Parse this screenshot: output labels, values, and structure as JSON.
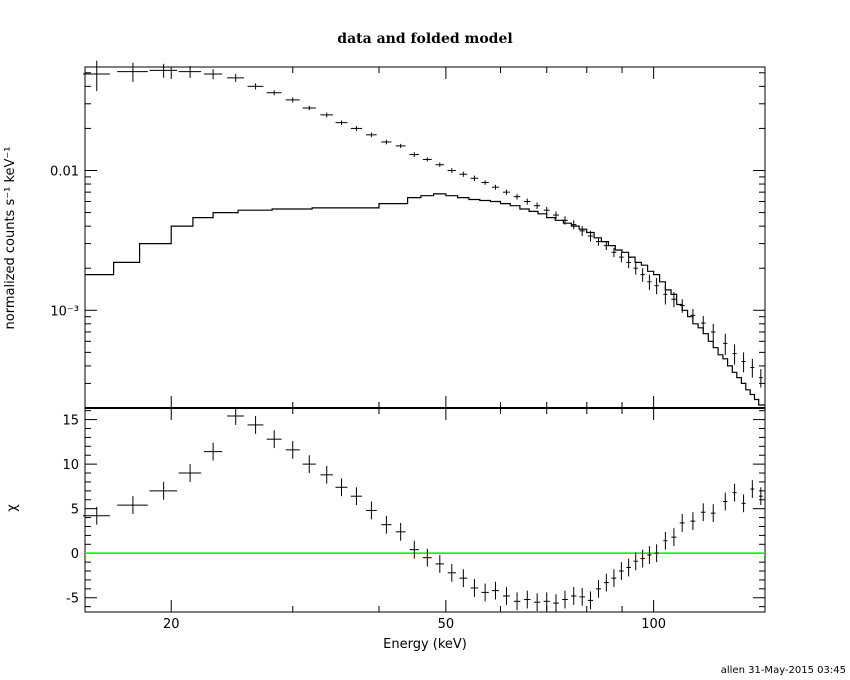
{
  "title": "data and folded model",
  "footer": "allen 31-May-2015 03:45",
  "colors": {
    "ink": "#000000",
    "zero_line": "#00ff00"
  },
  "chart_data": [
    {
      "type": "scatter",
      "panel": "top",
      "title": "data and folded model",
      "ylabel": "normalized counts s⁻¹ keV⁻¹",
      "xscale": "log",
      "yscale": "log",
      "xlim": [
        15,
        145
      ],
      "ylim": [
        0.0002,
        0.055
      ],
      "yticks": [
        {
          "v": 0.01,
          "label": "0.01"
        },
        {
          "v": 0.001,
          "label": "10⁻³"
        }
      ],
      "series": [
        {
          "kind": "data",
          "points": [
            [
              15.6,
              0.049,
              0.7,
              0.012
            ],
            [
              17.6,
              0.051,
              0.9,
              0.008
            ],
            [
              19.5,
              0.052,
              0.9,
              0.006
            ],
            [
              21.3,
              0.051,
              0.8,
              0.005
            ],
            [
              23.0,
              0.049,
              0.7,
              0.004
            ],
            [
              24.8,
              0.046,
              0.7,
              0.003
            ],
            [
              26.5,
              0.04,
              0.7,
              0.002
            ],
            [
              28.2,
              0.036,
              0.7,
              0.0015
            ],
            [
              30.0,
              0.032,
              0.7,
              0.0013
            ],
            [
              31.7,
              0.028,
              0.7,
              0.001
            ],
            [
              33.6,
              0.025,
              0.7,
              0.001
            ],
            [
              35.3,
              0.022,
              0.7,
              0.0008
            ],
            [
              37.1,
              0.02,
              0.7,
              0.0008
            ],
            [
              39.0,
              0.018,
              0.7,
              0.0007
            ],
            [
              41.0,
              0.016,
              0.7,
              0.0006
            ],
            [
              43.0,
              0.015,
              0.7,
              0.0005
            ],
            [
              45.0,
              0.013,
              0.7,
              0.0005
            ],
            [
              47.0,
              0.012,
              0.7,
              0.0004
            ],
            [
              49.0,
              0.011,
              0.7,
              0.0004
            ],
            [
              51.0,
              0.01,
              0.7,
              0.0004
            ],
            [
              53.0,
              0.0094,
              0.7,
              0.0004
            ],
            [
              55.0,
              0.0088,
              0.7,
              0.0004
            ],
            [
              57.0,
              0.0082,
              0.7,
              0.0003
            ],
            [
              59.0,
              0.0076,
              0.7,
              0.0003
            ],
            [
              61.2,
              0.007,
              0.7,
              0.0003
            ],
            [
              63.4,
              0.0065,
              0.7,
              0.0003
            ],
            [
              65.6,
              0.006,
              0.7,
              0.0003
            ],
            [
              67.8,
              0.0056,
              0.7,
              0.0003
            ],
            [
              70.0,
              0.0052,
              0.7,
              0.0003
            ],
            [
              72.2,
              0.0048,
              0.7,
              0.0003
            ],
            [
              74.4,
              0.0044,
              0.7,
              0.0003
            ],
            [
              76.6,
              0.0041,
              0.7,
              0.0003
            ],
            [
              78.8,
              0.0037,
              0.7,
              0.0003
            ],
            [
              81.0,
              0.0034,
              0.7,
              0.0003
            ],
            [
              83.2,
              0.0031,
              0.7,
              0.0002
            ],
            [
              85.4,
              0.0029,
              0.7,
              0.0002
            ],
            [
              87.6,
              0.0026,
              0.7,
              0.0002
            ],
            [
              89.8,
              0.0024,
              0.7,
              0.0002
            ],
            [
              92.0,
              0.0022,
              0.7,
              0.0002
            ],
            [
              94.2,
              0.002,
              0.7,
              0.0002
            ],
            [
              96.4,
              0.0018,
              0.7,
              0.0002
            ],
            [
              98.6,
              0.0016,
              0.7,
              0.0002
            ],
            [
              101,
              0.0015,
              0.7,
              0.0002
            ],
            [
              104,
              0.0013,
              0.7,
              0.0002
            ],
            [
              107,
              0.0012,
              0.9,
              0.00015
            ],
            [
              110,
              0.00108,
              0.9,
              0.00012
            ],
            [
              114,
              0.00092,
              0.9,
              0.0001
            ],
            [
              118,
              0.00081,
              0.9,
              0.0001
            ],
            [
              122,
              0.0007,
              0.9,
              0.0001
            ],
            [
              127,
              0.00058,
              0.9,
              0.0001
            ],
            [
              131,
              0.00049,
              0.9,
              8e-05
            ],
            [
              135,
              0.00043,
              0.9,
              7e-05
            ],
            [
              139,
              0.00039,
              0.9,
              6e-05
            ],
            [
              143,
              0.00033,
              0.9,
              5e-05
            ]
          ]
        },
        {
          "kind": "model",
          "steps": [
            [
              15,
              0.0018
            ],
            [
              16.5,
              0.0022
            ],
            [
              18,
              0.003
            ],
            [
              20,
              0.004
            ],
            [
              21.5,
              0.0046
            ],
            [
              23,
              0.005
            ],
            [
              25,
              0.0052
            ],
            [
              28,
              0.0053
            ],
            [
              32,
              0.0054
            ],
            [
              36,
              0.0054
            ],
            [
              40,
              0.0058
            ],
            [
              44,
              0.0064
            ],
            [
              46,
              0.0066
            ],
            [
              48,
              0.0068
            ],
            [
              50,
              0.0066
            ],
            [
              52,
              0.0064
            ],
            [
              54,
              0.0062
            ],
            [
              56,
              0.0061
            ],
            [
              58,
              0.006
            ],
            [
              60,
              0.0058
            ],
            [
              62,
              0.0056
            ],
            [
              64,
              0.0053
            ],
            [
              66,
              0.0051
            ],
            [
              68,
              0.0049
            ],
            [
              70,
              0.0046
            ],
            [
              72,
              0.0044
            ],
            [
              74,
              0.0042
            ],
            [
              76,
              0.004
            ],
            [
              78,
              0.0038
            ],
            [
              80,
              0.0036
            ],
            [
              82,
              0.0033
            ],
            [
              84,
              0.0031
            ],
            [
              86,
              0.0029
            ],
            [
              88,
              0.0027
            ],
            [
              90,
              0.0026
            ],
            [
              92,
              0.0024
            ],
            [
              94,
              0.0022
            ],
            [
              96,
              0.0021
            ],
            [
              98,
              0.0019
            ],
            [
              100,
              0.0018
            ],
            [
              102,
              0.0016
            ],
            [
              104,
              0.0014
            ],
            [
              106,
              0.0013
            ],
            [
              108,
              0.0011
            ],
            [
              110,
              0.001
            ],
            [
              112,
              0.0009
            ],
            [
              114,
              0.0008
            ],
            [
              116,
              0.00075
            ],
            [
              118,
              0.00068
            ],
            [
              120,
              0.0006
            ],
            [
              122,
              0.00054
            ],
            [
              124,
              0.00048
            ],
            [
              126,
              0.00045
            ],
            [
              128,
              0.0004
            ],
            [
              130,
              0.00036
            ],
            [
              132,
              0.00033
            ],
            [
              134,
              0.0003
            ],
            [
              136,
              0.00027
            ],
            [
              138,
              0.00025
            ],
            [
              140,
              0.00023
            ],
            [
              142,
              0.00021
            ],
            [
              145,
              0.00021
            ]
          ]
        }
      ]
    },
    {
      "type": "scatter",
      "panel": "bottom",
      "xlabel": "Energy (keV)",
      "ylabel": "χ",
      "xscale": "log",
      "xlim": [
        15,
        145
      ],
      "ylim": [
        -6.6,
        16.3
      ],
      "xticks": [
        {
          "v": 20,
          "label": "20"
        },
        {
          "v": 50,
          "label": "50"
        },
        {
          "v": 100,
          "label": "100"
        }
      ],
      "yticks": [
        {
          "v": -5,
          "label": "-5"
        },
        {
          "v": 0,
          "label": "0"
        },
        {
          "v": 5,
          "label": "5"
        },
        {
          "v": 10,
          "label": "10"
        },
        {
          "v": 15,
          "label": "15"
        }
      ],
      "zero_line": 0,
      "points": [
        [
          15.6,
          4.2,
          0.7,
          1.0
        ],
        [
          17.6,
          5.4,
          0.9,
          1.0
        ],
        [
          19.5,
          7.0,
          0.9,
          1.0
        ],
        [
          21.3,
          9.0,
          0.8,
          1.0
        ],
        [
          23.0,
          11.4,
          0.7,
          1.0
        ],
        [
          24.8,
          15.4,
          0.7,
          1.0
        ],
        [
          26.5,
          14.4,
          0.7,
          1.0
        ],
        [
          28.2,
          12.8,
          0.7,
          1.0
        ],
        [
          30.0,
          11.6,
          0.7,
          1.0
        ],
        [
          31.7,
          10.0,
          0.7,
          1.0
        ],
        [
          33.6,
          8.8,
          0.7,
          1.0
        ],
        [
          35.3,
          7.4,
          0.7,
          1.0
        ],
        [
          37.1,
          6.4,
          0.7,
          1.0
        ],
        [
          39.0,
          4.8,
          0.7,
          1.0
        ],
        [
          41.0,
          3.2,
          0.7,
          1.0
        ],
        [
          43.0,
          2.4,
          0.7,
          1.0
        ],
        [
          45.0,
          0.4,
          0.7,
          1.0
        ],
        [
          47.0,
          -0.5,
          0.7,
          1.0
        ],
        [
          49.0,
          -1.2,
          0.7,
          1.0
        ],
        [
          51.0,
          -2.2,
          0.7,
          1.0
        ],
        [
          53.0,
          -2.8,
          0.7,
          1.0
        ],
        [
          55.0,
          -3.9,
          0.7,
          1.0
        ],
        [
          57.0,
          -4.4,
          0.7,
          1.0
        ],
        [
          59.0,
          -4.2,
          0.7,
          1.0
        ],
        [
          61.2,
          -4.8,
          0.7,
          1.0
        ],
        [
          63.4,
          -5.4,
          0.7,
          1.0
        ],
        [
          65.6,
          -5.2,
          0.7,
          1.0
        ],
        [
          67.8,
          -5.5,
          0.7,
          1.0
        ],
        [
          70.0,
          -5.4,
          0.7,
          1.0
        ],
        [
          72.2,
          -5.6,
          0.7,
          1.0
        ],
        [
          74.4,
          -5.2,
          0.7,
          1.0
        ],
        [
          76.6,
          -4.8,
          0.7,
          1.0
        ],
        [
          78.8,
          -4.9,
          0.7,
          1.0
        ],
        [
          81.0,
          -5.3,
          0.7,
          1.0
        ],
        [
          83.2,
          -4.0,
          0.7,
          1.0
        ],
        [
          85.4,
          -3.3,
          0.7,
          1.0
        ],
        [
          87.6,
          -2.8,
          0.7,
          1.0
        ],
        [
          89.8,
          -2.0,
          0.7,
          1.0
        ],
        [
          92.0,
          -1.6,
          0.7,
          1.0
        ],
        [
          94.2,
          -0.9,
          0.7,
          1.0
        ],
        [
          96.4,
          -0.6,
          0.7,
          1.0
        ],
        [
          98.6,
          -0.2,
          0.7,
          1.0
        ],
        [
          101,
          0.0,
          0.7,
          1.0
        ],
        [
          104,
          1.4,
          0.7,
          1.0
        ],
        [
          107,
          1.8,
          0.9,
          1.0
        ],
        [
          110,
          3.4,
          0.9,
          1.0
        ],
        [
          114,
          3.6,
          0.9,
          1.0
        ],
        [
          118,
          4.6,
          0.9,
          1.0
        ],
        [
          122,
          4.5,
          0.9,
          1.0
        ],
        [
          127,
          5.8,
          0.9,
          1.0
        ],
        [
          131,
          6.8,
          0.9,
          1.0
        ],
        [
          135,
          5.6,
          0.9,
          1.0
        ],
        [
          139,
          7.2,
          0.9,
          1.0
        ],
        [
          143,
          6.4,
          0.9,
          1.0
        ]
      ]
    }
  ]
}
